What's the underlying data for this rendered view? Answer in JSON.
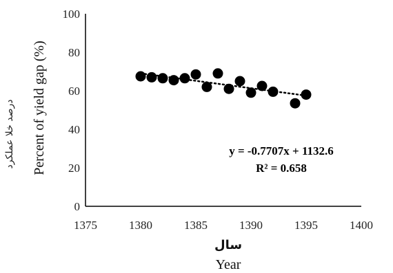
{
  "chart_data": {
    "type": "scatter",
    "x": [
      1380,
      1381,
      1382,
      1383,
      1384,
      1385,
      1386,
      1387,
      1388,
      1389,
      1390,
      1391,
      1392,
      1394,
      1395
    ],
    "y": [
      67.5,
      67,
      66.5,
      65.5,
      66.5,
      68.5,
      62,
      69,
      61,
      65,
      59,
      62.5,
      59.5,
      53.5,
      58
    ],
    "trendline": {
      "slope": -0.7707,
      "intercept": 1132.6,
      "x_range": [
        1380,
        1395
      ]
    },
    "equation": "y = -0.7707x + 1132.6",
    "r_squared": "R² = 0.658",
    "xlabel_fa": "سال",
    "xlabel": "Year",
    "ylabel_fa": "درصد خلا عملکرد",
    "ylabel": "Percent of yield gap (%)",
    "xlim": [
      1375,
      1400
    ],
    "ylim": [
      0,
      100
    ],
    "xticks": [
      1375,
      1380,
      1385,
      1390,
      1395,
      1400
    ],
    "yticks": [
      0,
      20,
      40,
      60,
      80,
      100
    ],
    "grid": false,
    "colors": {
      "marker": "#000000",
      "trendline": "#000000",
      "axis": "#000000"
    }
  }
}
